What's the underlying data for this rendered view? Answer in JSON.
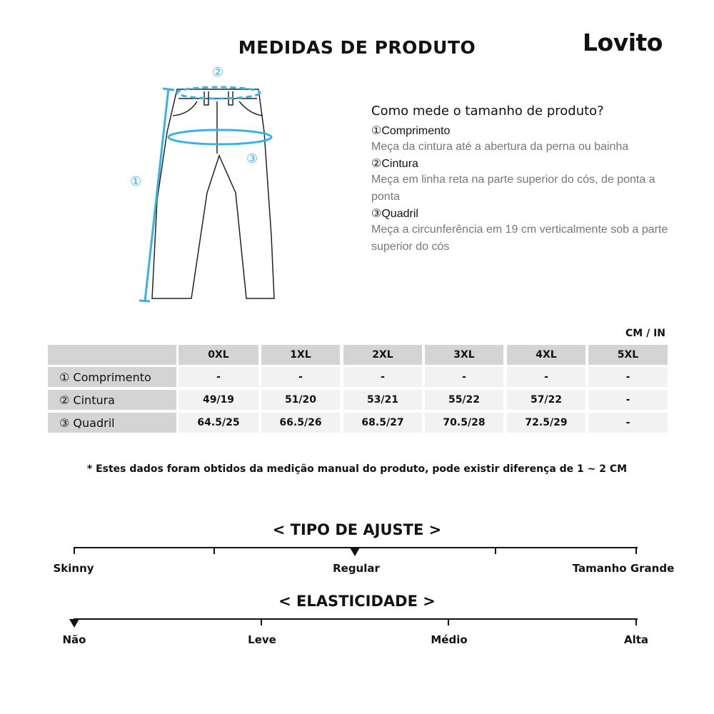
{
  "title": "MEDIDAS DE PRODUTO",
  "logo": "Lovito",
  "accent_color": "#3ab0e8",
  "diagram": {
    "markers": [
      "①",
      "②",
      "③"
    ]
  },
  "howto": {
    "heading": "Como mede o tamanho de produto?",
    "items": [
      {
        "label": "①Comprimento",
        "desc": "Meça da cintura até a abertura da perna ou bainha"
      },
      {
        "label": "②Cintura",
        "desc": "Meça em linha reta na parte superior do cós, de ponta a ponta"
      },
      {
        "label": "③Quadril",
        "desc": "Meça a circunferência em 19 cm verticalmente sob a parte superior do cós"
      }
    ]
  },
  "table": {
    "unit": "CM / IN",
    "headers": [
      "",
      "0XL",
      "1XL",
      "2XL",
      "3XL",
      "4XL",
      "5XL"
    ],
    "rows": [
      {
        "label": "① Comprimento",
        "values": [
          "-",
          "-",
          "-",
          "-",
          "-",
          "-"
        ]
      },
      {
        "label": "② Cintura",
        "values": [
          "49/19",
          "51/20",
          "53/21",
          "55/22",
          "57/22",
          "-"
        ]
      },
      {
        "label": "③ Quadril",
        "values": [
          "64.5/25",
          "66.5/26",
          "68.5/27",
          "70.5/28",
          "72.5/29",
          "-"
        ]
      }
    ]
  },
  "note": "* Estes dados foram obtidos da medição manual do produto, pode existir diferença de 1 ~ 2 CM",
  "fit": {
    "title": "< TIPO DE AJUSTE >",
    "labels": [
      "Skinny",
      "Regular",
      "Tamanho Grande"
    ],
    "selected": "Regular"
  },
  "elasticity": {
    "title": "< ELASTICIDADE >",
    "labels": [
      "Não",
      "Leve",
      "Médio",
      "Alta"
    ],
    "selected": "Não"
  }
}
